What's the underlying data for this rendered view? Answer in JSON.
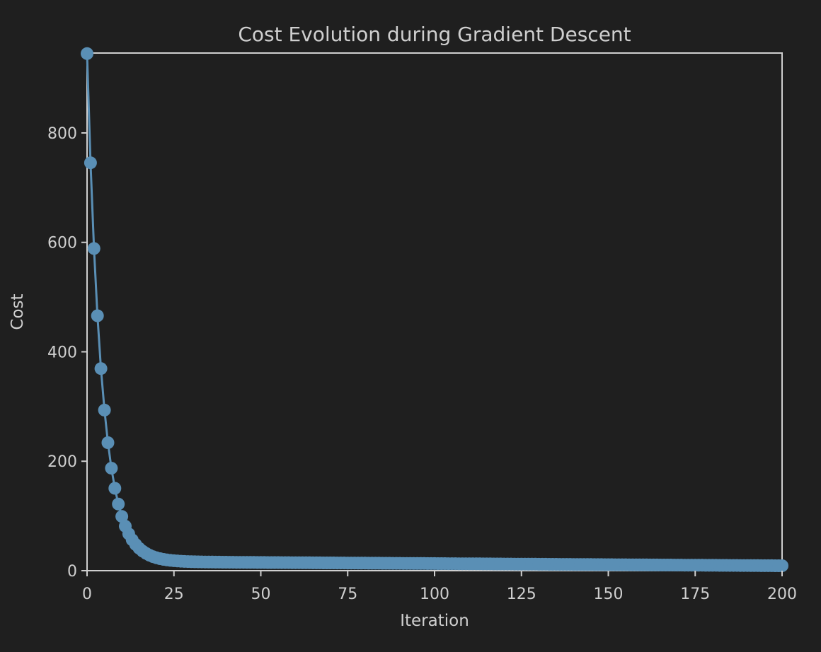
{
  "chart_data": {
    "type": "line",
    "title": "Cost Evolution during Gradient Descent",
    "xlabel": "Iteration",
    "ylabel": "Cost",
    "xlim": [
      0,
      200
    ],
    "ylim": [
      0,
      946
    ],
    "grid": false,
    "legend": null,
    "marker": "circle",
    "series": [
      {
        "name": "Cost",
        "color": "#5a8fb5",
        "model": {
          "description": "Exponential decay toward a slowly decreasing floor; approx cost(i) = floor(i) + (945 - floor(i)) * 0.785^i",
          "initial": 945,
          "ratio": 0.785,
          "floor_start": 17,
          "floor_end": 9
        },
        "sample_points": [
          {
            "x": 0,
            "y": 945
          },
          {
            "x": 1,
            "y": 738
          },
          {
            "x": 2,
            "y": 579
          },
          {
            "x": 3,
            "y": 453
          },
          {
            "x": 4,
            "y": 357
          },
          {
            "x": 5,
            "y": 283
          },
          {
            "x": 6,
            "y": 224
          },
          {
            "x": 7,
            "y": 178
          },
          {
            "x": 8,
            "y": 142
          },
          {
            "x": 9,
            "y": 114
          },
          {
            "x": 10,
            "y": 93
          },
          {
            "x": 12,
            "y": 64
          },
          {
            "x": 15,
            "y": 40
          },
          {
            "x": 20,
            "y": 24
          },
          {
            "x": 25,
            "y": 19
          },
          {
            "x": 50,
            "y": 16
          },
          {
            "x": 75,
            "y": 14
          },
          {
            "x": 100,
            "y": 13
          },
          {
            "x": 125,
            "y": 12
          },
          {
            "x": 150,
            "y": 11
          },
          {
            "x": 175,
            "y": 10
          },
          {
            "x": 200,
            "y": 9
          }
        ]
      }
    ],
    "xticks": [
      0,
      25,
      50,
      75,
      100,
      125,
      150,
      175,
      200
    ],
    "xtick_labels": [
      "0",
      "25",
      "50",
      "75",
      "100",
      "125",
      "150",
      "175",
      "200"
    ],
    "yticks": [
      0,
      200,
      400,
      600,
      800
    ],
    "ytick_labels": [
      "0",
      "200",
      "400",
      "600",
      "800"
    ]
  },
  "theme": {
    "background": "#1f1f1f",
    "axes_face": "#1f1f1f",
    "spine_color": "#cfcfcf",
    "text_color": "#cfcfcf",
    "line_color": "#5a8fb5"
  }
}
